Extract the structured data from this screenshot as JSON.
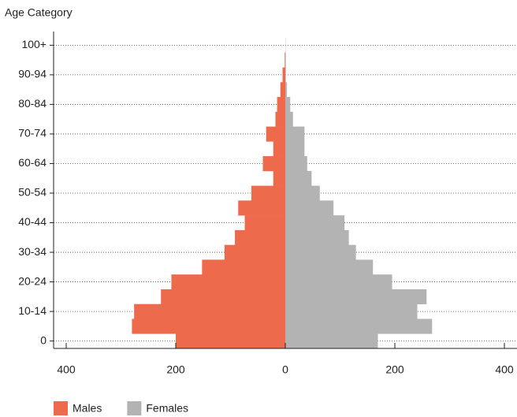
{
  "chart_data": {
    "type": "pyramid",
    "y_axis_label": "Age Category",
    "categories": [
      "0",
      null,
      "10-14",
      null,
      "20-24",
      null,
      "30-34",
      null,
      "40-44",
      null,
      "50-54",
      null,
      "60-64",
      null,
      "70-74",
      null,
      "80-84",
      null,
      "90-94",
      null,
      "100+"
    ],
    "series": [
      {
        "name": "Males",
        "color": "#ee6a4d",
        "side": "left",
        "values": [
          200,
          280,
          276,
          227,
          208,
          152,
          111,
          92,
          74,
          86,
          62,
          22,
          41,
          22,
          35,
          18,
          15,
          9,
          5,
          1,
          0
        ]
      },
      {
        "name": "Females",
        "color": "#b3b3b3",
        "side": "right",
        "values": [
          169,
          268,
          241,
          258,
          195,
          160,
          129,
          116,
          108,
          88,
          63,
          48,
          40,
          35,
          35,
          14,
          9,
          3,
          1,
          1,
          0.5
        ]
      }
    ],
    "xlim": [
      0,
      400
    ],
    "xticks": [
      0,
      200,
      400
    ],
    "grid": true
  }
}
